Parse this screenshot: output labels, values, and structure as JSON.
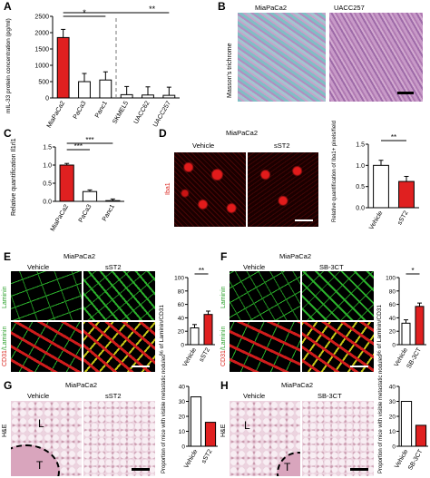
{
  "colors": {
    "red": "#e02020",
    "green": "#22b022",
    "black": "#000000",
    "tissue_pink": "#e7c9d6"
  },
  "panelA": {
    "label": "A",
    "ylabel": "mIL-33 protein concentration (pg/ml)",
    "ticks": [
      "2500",
      "2000",
      "1500",
      "1000",
      "500",
      "0"
    ],
    "sig1": "*",
    "sig2": "**"
  },
  "panelB": {
    "label": "B",
    "ylabel": "Masson's trichrome",
    "left": "MiaPaCa2",
    "right": "UACC257"
  },
  "panelC": {
    "label": "C",
    "ylabel": "Relative quantification Il1rl1",
    "ticks": [
      "1.5",
      "1.0",
      "0.5",
      "0.0"
    ],
    "sig1": "***",
    "sig2": "***"
  },
  "panelD": {
    "label": "D",
    "title": "MiaPaCa2",
    "left": "Vehicle",
    "right": "sST2",
    "ylabel": "Iba1",
    "chart_ylabel": "Relative quantification of Iba1+ pixels/field",
    "ticks": [
      "1.5",
      "1.0",
      "0.5",
      "0.0"
    ],
    "sig": "**"
  },
  "panelE": {
    "label": "E",
    "title": "MiaPaCa2",
    "left": "Vehicle",
    "right": "sST2",
    "row1": "Laminin",
    "row2a": "CD31",
    "row2b": "/Laminin",
    "chart_ylabel": "% of Laminin/CD31",
    "ticks": [
      "100",
      "80",
      "60",
      "40",
      "20",
      "0"
    ],
    "sig": "**"
  },
  "panelF": {
    "label": "F",
    "title": "MiaPaCa2",
    "left": "Vehicle",
    "right": "SB-3CT",
    "row1": "Laminin",
    "row2a": "CD31",
    "row2b": "/Laminin",
    "chart_ylabel": "% of Laminin/CD31",
    "ticks": [
      "100",
      "80",
      "60",
      "40",
      "20",
      "0"
    ],
    "sig": "*"
  },
  "panelG": {
    "label": "G",
    "title": "MiaPaCa2",
    "left": "Vehicle",
    "right": "sST2",
    "ylabel": "H&E",
    "L": "L",
    "T": "T",
    "chart_ylabel": "Proportion of mice with visible metastatic nodules",
    "ticks": [
      "40",
      "30",
      "20",
      "10",
      "0"
    ]
  },
  "panelH": {
    "label": "H",
    "title": "MiaPaCa2",
    "left": "Vehicle",
    "right": "SB-3CT",
    "ylabel": "H&E",
    "L": "L",
    "T": "T",
    "chart_ylabel": "Proportion of mice with visible metastatic nodules",
    "ticks": [
      "40",
      "30",
      "20",
      "10",
      "0"
    ]
  },
  "chart_data": [
    {
      "panel": "A",
      "type": "bar",
      "categories": [
        "MiaPaCa2",
        "PaCa3",
        "Panc1",
        "SKMEL5",
        "UACC62",
        "UACC257"
      ],
      "values": [
        1850,
        500,
        550,
        100,
        90,
        80
      ],
      "ylim": [
        0,
        2500
      ],
      "ylabel": "mIL-33 protein concentration (pg/ml)",
      "colors": [
        "red",
        "white",
        "white",
        "white",
        "white",
        "white"
      ]
    },
    {
      "panel": "C",
      "type": "bar",
      "categories": [
        "MiaPaCa2",
        "PaCa3",
        "Panc1"
      ],
      "values": [
        1.0,
        0.27,
        0.02
      ],
      "ylim": [
        0,
        1.5
      ],
      "ylabel": "Relative quantification Il1rl1",
      "colors": [
        "red",
        "white",
        "white"
      ]
    },
    {
      "panel": "D",
      "type": "bar",
      "categories": [
        "Vehicle",
        "sST2"
      ],
      "values": [
        1.0,
        0.62
      ],
      "ylim": [
        0,
        1.5
      ],
      "ylabel": "Relative quantification of Iba1+ pixels/field",
      "colors": [
        "white",
        "red"
      ]
    },
    {
      "panel": "E",
      "type": "bar",
      "categories": [
        "Vehicle",
        "sST2"
      ],
      "values": [
        25,
        45
      ],
      "ylim": [
        0,
        100
      ],
      "ylabel": "% of Laminin/CD31",
      "colors": [
        "white",
        "red"
      ]
    },
    {
      "panel": "F",
      "type": "bar",
      "categories": [
        "Vehicle",
        "SB-3CT"
      ],
      "values": [
        32,
        57
      ],
      "ylim": [
        0,
        100
      ],
      "ylabel": "% of Laminin/CD31",
      "colors": [
        "white",
        "red"
      ]
    },
    {
      "panel": "G",
      "type": "bar",
      "categories": [
        "Vehicle",
        "sST2"
      ],
      "values": [
        33,
        16
      ],
      "ylim": [
        0,
        40
      ],
      "ylabel": "Proportion of mice with visible metastatic nodules",
      "colors": [
        "white",
        "red"
      ]
    },
    {
      "panel": "H",
      "type": "bar",
      "categories": [
        "Vehicle",
        "SB-3CT"
      ],
      "values": [
        30,
        14
      ],
      "ylim": [
        0,
        40
      ],
      "ylabel": "Proportion of mice with visible metastatic nodules",
      "colors": [
        "white",
        "red"
      ]
    }
  ]
}
